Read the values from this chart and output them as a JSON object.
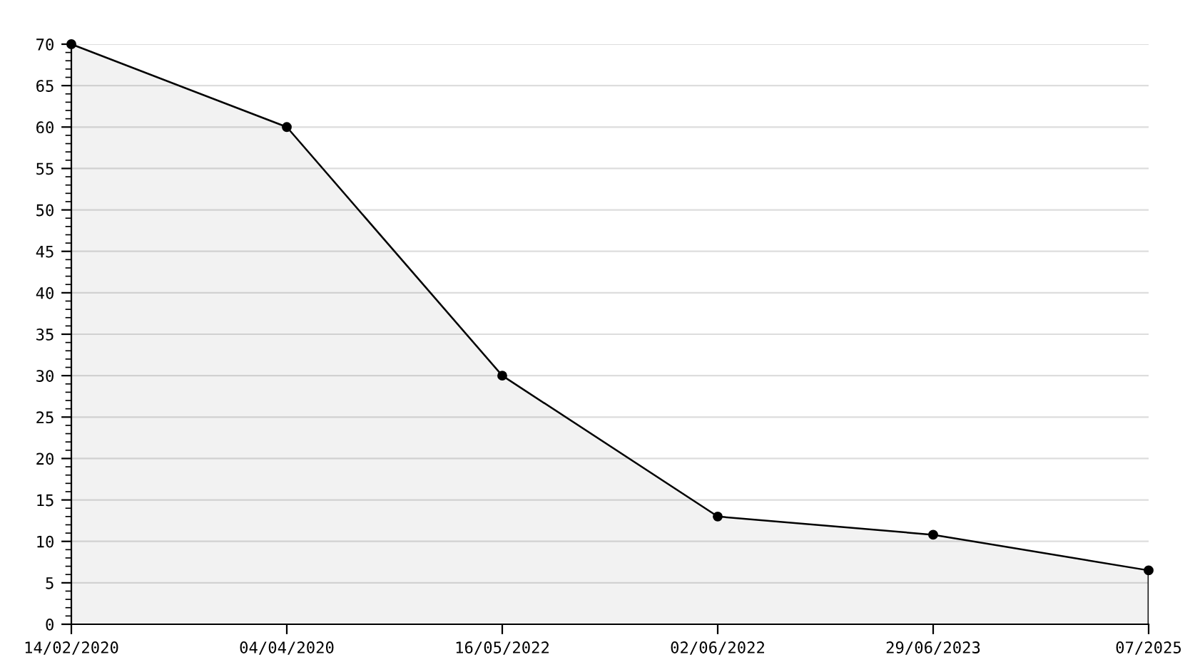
{
  "chart_data": {
    "type": "area",
    "categories": [
      "14/02/2020",
      "04/04/2020",
      "16/05/2022",
      "02/06/2022",
      "29/06/2023",
      "07/2025"
    ],
    "series": [
      {
        "color": "#000000",
        "values": [
          70,
          60,
          30,
          13,
          10.8,
          6.5
        ]
      }
    ],
    "ylim": [
      0,
      70
    ],
    "yticks": [
      0,
      5,
      10,
      15,
      20,
      25,
      30,
      35,
      40,
      45,
      50,
      55,
      60,
      65,
      70
    ],
    "grid": "y",
    "marker": "circle",
    "line_style": "solid"
  }
}
